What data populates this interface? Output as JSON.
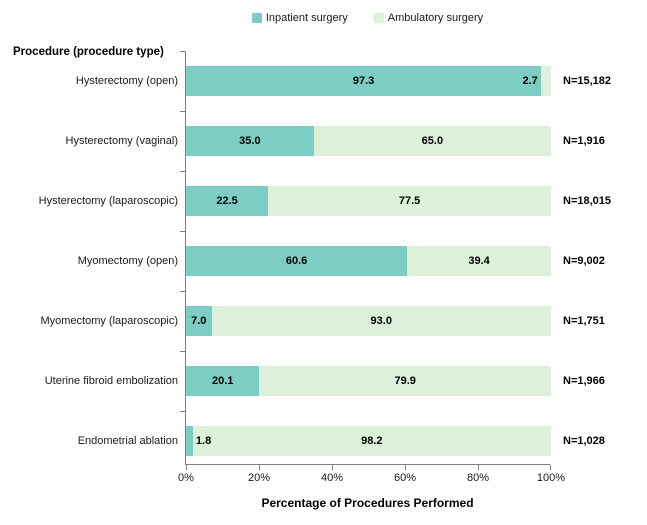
{
  "chart_data": {
    "type": "bar",
    "orientation": "horizontal",
    "stacked": true,
    "title": "",
    "ylabel": "Procedure (procedure type)",
    "xlabel": "Percentage of Procedures Performed",
    "categories": [
      "Hysterectomy (open)",
      "Hysterectomy (vaginal)",
      "Hysterectomy (laparoscopic)",
      "Myomectomy (open)",
      "Myomectomy (laparoscopic)",
      "Uterine fibroid embolization",
      "Endometrial ablation"
    ],
    "series": [
      {
        "name": "Inpatient surgery",
        "color": "#7ccdc3",
        "values": [
          97.3,
          35.0,
          22.5,
          60.6,
          7.0,
          20.1,
          1.8
        ]
      },
      {
        "name": "Ambulatory surgery",
        "color": "#ddf1da",
        "values": [
          2.7,
          65.0,
          77.5,
          39.4,
          93.0,
          79.9,
          98.2
        ]
      }
    ],
    "n_labels": [
      "N=15,182",
      "N=1,916",
      "N=18,015",
      "N=9,002",
      "N=1,751",
      "N=1,966",
      "N=1,028"
    ],
    "x_tick_labels": [
      "0%",
      "20%",
      "40%",
      "60%",
      "80%",
      "100%"
    ],
    "xlim": [
      0,
      100
    ],
    "legend_position": "top",
    "grid": false,
    "axis_color": "#808080"
  }
}
